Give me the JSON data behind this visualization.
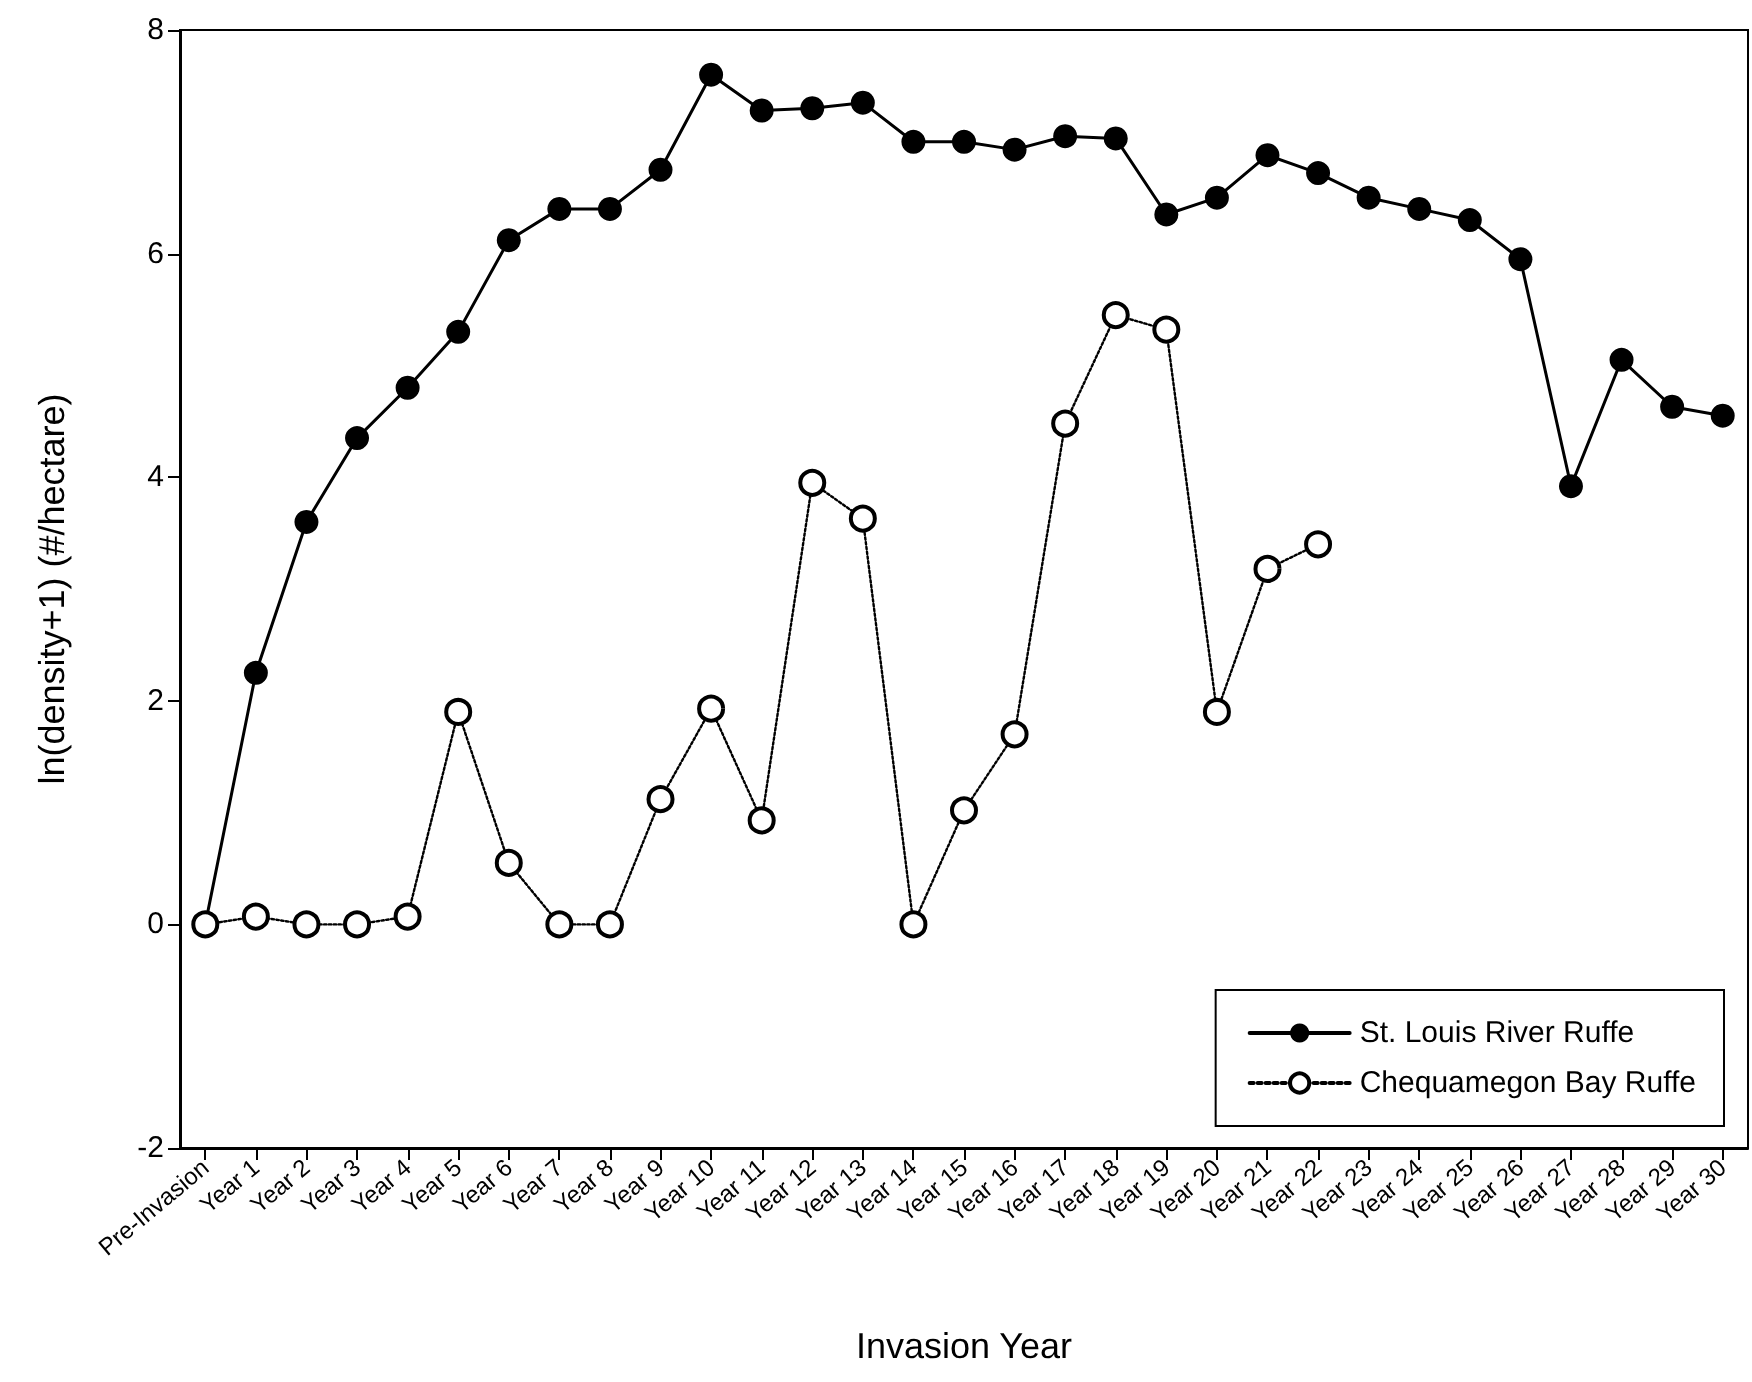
{
  "chart_data": {
    "type": "line",
    "xlabel": "Invasion Year",
    "ylabel": "ln(density+1) (#/hectare)",
    "categories": [
      "Pre-Invasion",
      "Year 1",
      "Year 2",
      "Year 3",
      "Year 4",
      "Year 5",
      "Year 6",
      "Year 7",
      "Year 8",
      "Year 9",
      "Year 10",
      "Year 11",
      "Year 12",
      "Year 13",
      "Year 14",
      "Year 15",
      "Year 16",
      "Year 17",
      "Year 18",
      "Year 19",
      "Year 20",
      "Year 21",
      "Year 22",
      "Year 23",
      "Year 24",
      "Year 25",
      "Year 26",
      "Year 27",
      "Year 28",
      "Year 29",
      "Year 30"
    ],
    "series": [
      {
        "name": "St. Louis River Ruffe",
        "color": "#000000",
        "line_style": "solid",
        "values": [
          0,
          2.25,
          3.6,
          4.35,
          4.8,
          5.3,
          6.12,
          6.4,
          6.4,
          6.75,
          7.6,
          7.28,
          7.3,
          7.35,
          7.0,
          7.0,
          6.93,
          7.05,
          7.03,
          6.35,
          6.5,
          6.88,
          6.72,
          6.5,
          6.4,
          6.3,
          5.95,
          3.92,
          5.05,
          4.63,
          4.55
        ]
      },
      {
        "name": "Chequamegon Bay Ruffe",
        "color": "#000000",
        "line_style": "dotted",
        "values": [
          0,
          0.07,
          0,
          0,
          0.07,
          1.9,
          0.55,
          0,
          0,
          1.12,
          1.93,
          0.93,
          3.95,
          3.63,
          0,
          1.02,
          1.7,
          4.48,
          5.45,
          5.32,
          1.9,
          3.18,
          3.4,
          null,
          null,
          null,
          null,
          null,
          null,
          null,
          null
        ]
      }
    ],
    "ylim": [
      -2,
      8
    ],
    "yticks": [
      -2,
      0,
      2,
      4,
      6,
      8
    ],
    "grid": false,
    "legend": "bottom right",
    "marker": "circle"
  }
}
